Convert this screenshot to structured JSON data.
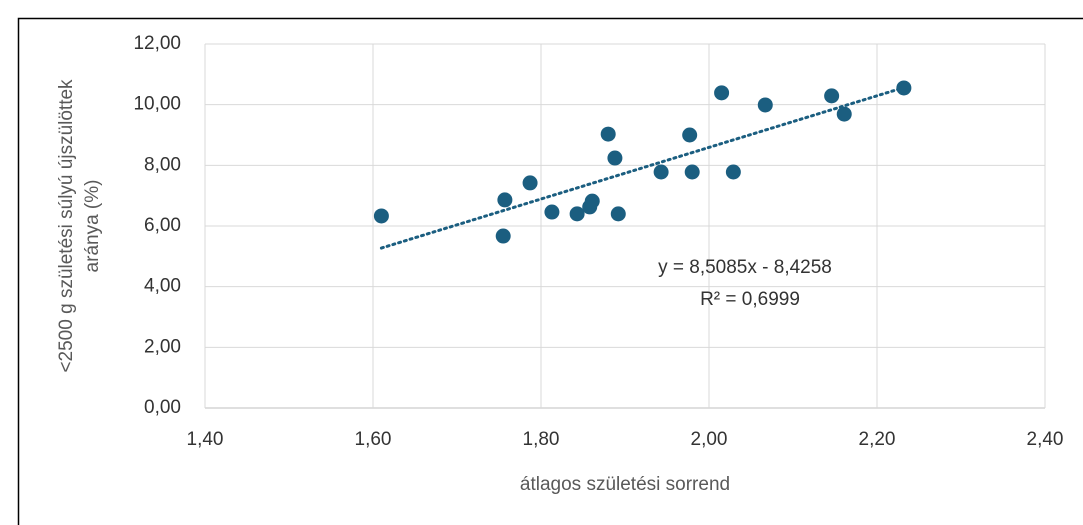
{
  "chart_data": {
    "type": "scatter",
    "xlabel": "átlagos születési sorrend",
    "ylabel": [
      "<2500 g születési súlyú újszülöttek",
      "aránya (%)"
    ],
    "x": [
      1.61,
      1.755,
      1.757,
      1.787,
      1.813,
      1.843,
      1.858,
      1.861,
      1.88,
      1.888,
      1.892,
      1.943,
      1.977,
      1.98,
      2.015,
      2.029,
      2.067,
      2.146,
      2.161,
      2.232
    ],
    "values": [
      6.33,
      5.67,
      6.86,
      7.42,
      6.46,
      6.4,
      6.63,
      6.82,
      9.03,
      8.24,
      6.4,
      7.78,
      9.0,
      7.78,
      10.39,
      7.78,
      9.99,
      10.29,
      9.69,
      10.55
    ],
    "color": "#1b5e80",
    "xlim": [
      1.4,
      2.4
    ],
    "xticks": [
      {
        "value": 1.4,
        "label": "1,40"
      },
      {
        "value": 1.6,
        "label": "1,60"
      },
      {
        "value": 1.8,
        "label": "1,80"
      },
      {
        "value": 2.0,
        "label": "2,00"
      },
      {
        "value": 2.2,
        "label": "2,20"
      },
      {
        "value": 2.4,
        "label": "2,40"
      }
    ],
    "ylim": [
      0,
      12
    ],
    "yticks": [
      {
        "value": 0,
        "label": "0,00"
      },
      {
        "value": 2,
        "label": "2,00"
      },
      {
        "value": 4,
        "label": "4,00"
      },
      {
        "value": 6,
        "label": "6,00"
      },
      {
        "value": 8,
        "label": "8,00"
      },
      {
        "value": 10,
        "label": "10,00"
      },
      {
        "value": 12,
        "label": "12,00"
      }
    ],
    "grid": true,
    "trendline": {
      "slope": 8.5085,
      "intercept": -8.4258,
      "equation": "y = 8,5085x - 8,4258",
      "r2": "R² = 0,6999"
    }
  }
}
